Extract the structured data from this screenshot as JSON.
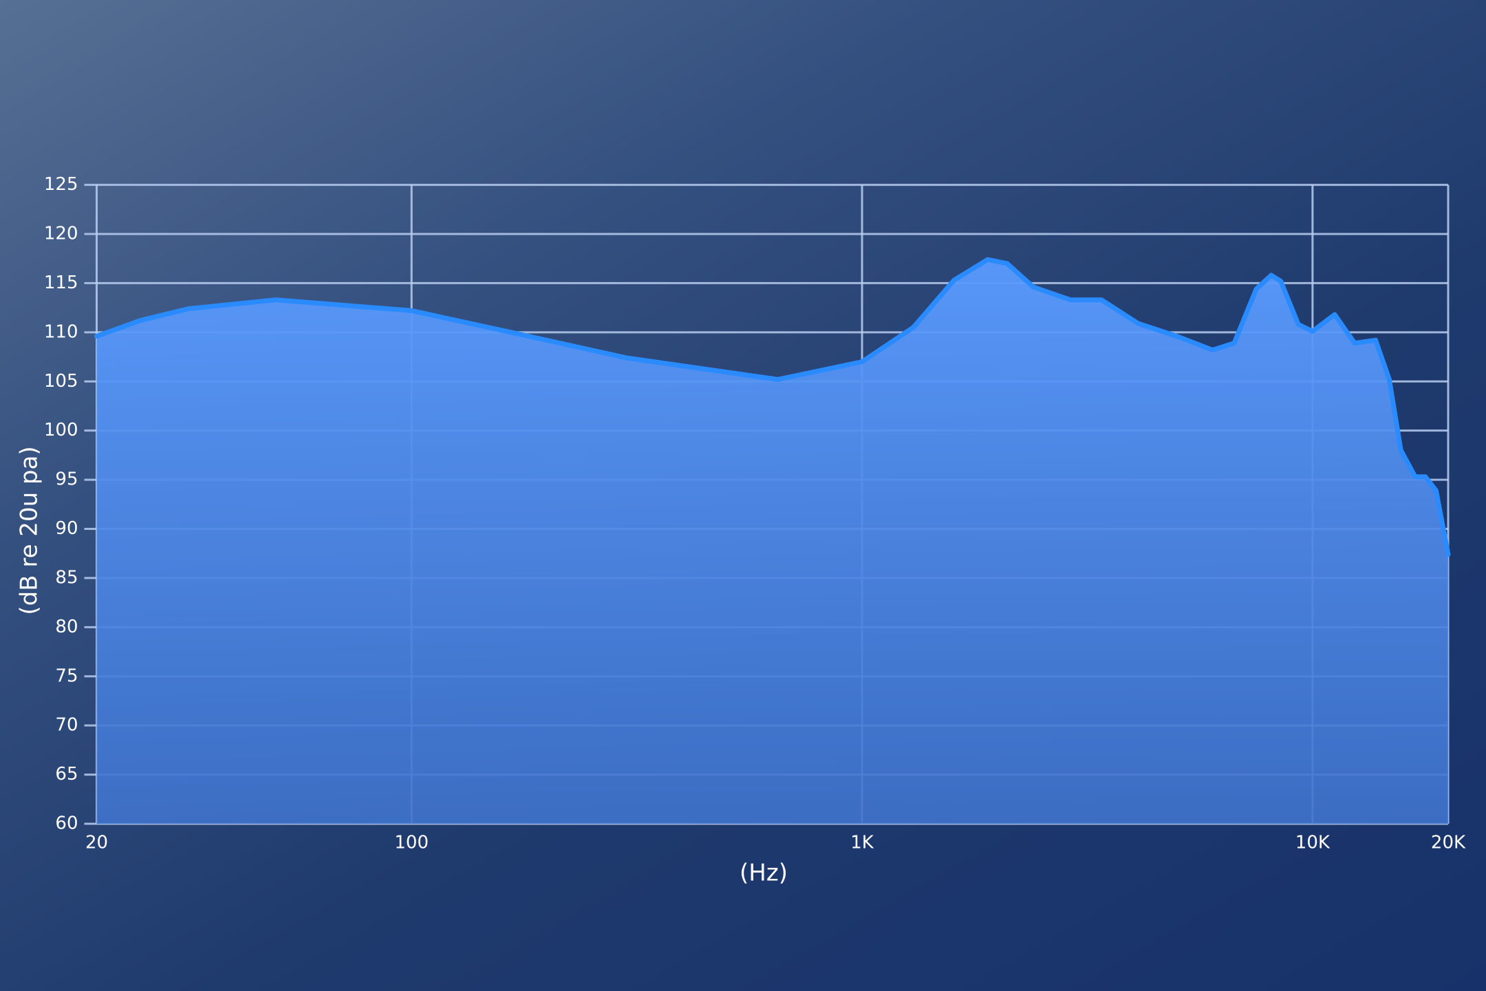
{
  "chart_data": {
    "type": "area",
    "x_label": "(Hz)",
    "y_label": "(dB re 20u pa)",
    "log_x": true,
    "grid": true,
    "xlim": [
      20,
      20000
    ],
    "xticks": [
      20,
      100,
      {
        "value": 1000,
        "label": "1K"
      },
      {
        "value": 10000,
        "label": "10K"
      },
      {
        "value": 20000,
        "label": "20K"
      }
    ],
    "ylim": [
      60,
      125
    ],
    "yticks": [
      60,
      65,
      70,
      75,
      80,
      85,
      90,
      95,
      100,
      105,
      110,
      115,
      120,
      125
    ],
    "series": [
      {
        "color": "#2a8bff",
        "x": [
          20,
          25,
          32,
          50,
          100,
          170,
          300,
          650,
          1000,
          1300,
          1600,
          1900,
          2100,
          2400,
          2900,
          3400,
          4100,
          5000,
          6000,
          6700,
          7500,
          8100,
          8500,
          9300,
          10000,
          11200,
          12400,
          13800,
          14800,
          15700,
          16900,
          17800,
          18800,
          20000
        ],
        "values": [
          109.6,
          111.2,
          112.4,
          113.3,
          112.2,
          109.9,
          107.4,
          105.2,
          107,
          110.5,
          115.3,
          117.4,
          117.0,
          114.6,
          113.3,
          113.3,
          110.9,
          109.6,
          108.2,
          108.9,
          114.4,
          115.8,
          115.2,
          110.8,
          110.1,
          111.8,
          108.9,
          109.2,
          105.2,
          98.0,
          95.3,
          95.3,
          93.9,
          87.4
        ]
      }
    ]
  }
}
